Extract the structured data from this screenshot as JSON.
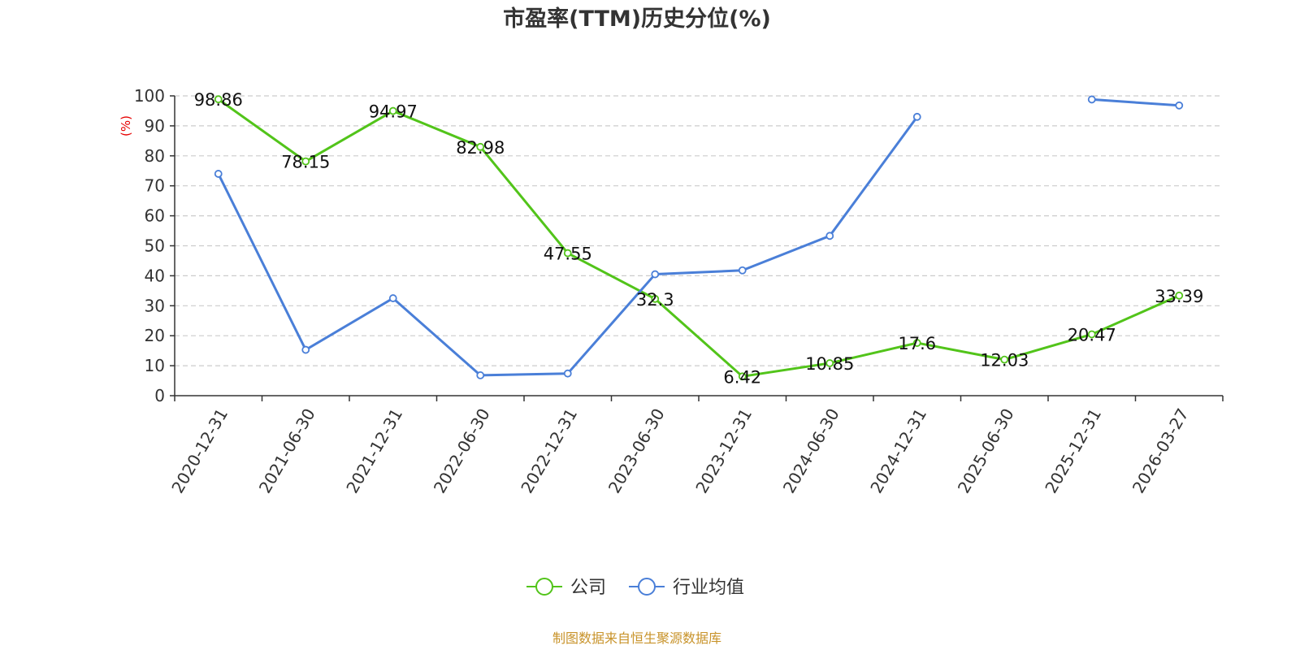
{
  "chart_data": {
    "type": "line",
    "title": "市盈率(TTM)历史分位(%)",
    "ylabel": "(%)",
    "xlabel": "",
    "ylim": [
      0,
      100
    ],
    "yticks": [
      0,
      10,
      20,
      30,
      40,
      50,
      60,
      70,
      80,
      90,
      100
    ],
    "grid": true,
    "legend_position": "bottom-center",
    "categories": [
      "2020-12-31",
      "2021-06-30",
      "2021-12-31",
      "2022-06-30",
      "2022-12-31",
      "2023-06-30",
      "2023-12-31",
      "2024-06-30",
      "2024-12-31",
      "2025-06-30",
      "2025-12-31",
      "2026-03-27"
    ],
    "series": [
      {
        "name": "公司",
        "color": "#52c41a",
        "values": [
          98.86,
          78.15,
          94.97,
          82.98,
          47.55,
          32.3,
          6.42,
          10.85,
          17.6,
          12.03,
          20.47,
          33.39
        ],
        "labels": [
          "98.86",
          "78.15",
          "94.97",
          "82.98",
          "47.55",
          "32.3",
          "6.42",
          "10.85",
          "17.6",
          "12.03",
          "20.47",
          "33.39"
        ],
        "show_labels": true
      },
      {
        "name": "行业均值",
        "color": "#4a7fd8",
        "values": [
          74,
          15.3,
          32.5,
          6.8,
          7.4,
          40.5,
          41.8,
          53.3,
          93,
          null,
          98.8,
          96.8
        ],
        "show_labels": false
      }
    ]
  },
  "footer": {
    "source": "制图数据来自恒生聚源数据库"
  }
}
